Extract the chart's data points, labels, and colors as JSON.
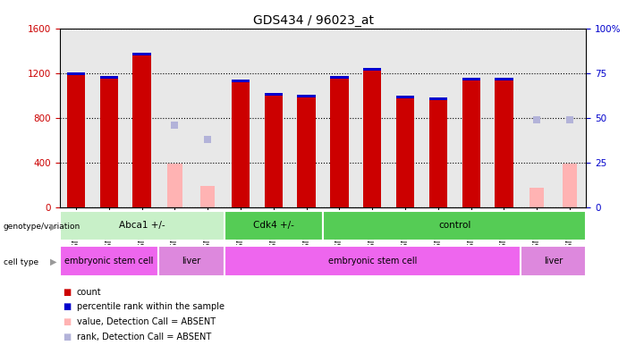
{
  "title": "GDS434 / 96023_at",
  "samples": [
    "GSM9269",
    "GSM9270",
    "GSM9271",
    "GSM9283",
    "GSM9284",
    "GSM9278",
    "GSM9279",
    "GSM9280",
    "GSM9272",
    "GSM9273",
    "GSM9274",
    "GSM9275",
    "GSM9276",
    "GSM9277",
    "GSM9281",
    "GSM9282"
  ],
  "counts": [
    1180,
    1150,
    1360,
    0,
    0,
    1120,
    1000,
    980,
    1150,
    1220,
    970,
    960,
    1130,
    1130,
    0,
    0
  ],
  "ranks": [
    70,
    68,
    71,
    0,
    0,
    69,
    64,
    63,
    70,
    75,
    62,
    63,
    68,
    68,
    0,
    0
  ],
  "counts_absent": [
    0,
    0,
    0,
    390,
    190,
    0,
    0,
    0,
    0,
    0,
    0,
    0,
    0,
    0,
    170,
    390
  ],
  "ranks_absent": [
    0,
    0,
    0,
    46,
    38,
    0,
    0,
    0,
    0,
    0,
    0,
    0,
    0,
    0,
    49,
    49
  ],
  "ylim_left": [
    0,
    1600
  ],
  "ylim_right": [
    0,
    100
  ],
  "yticks_left": [
    0,
    400,
    800,
    1200,
    1600
  ],
  "yticks_right": [
    0,
    25,
    50,
    75,
    100
  ],
  "bar_color": "#cc0000",
  "rank_color": "#0000cc",
  "absent_bar_color": "#ffb3b3",
  "absent_rank_color": "#b3b3d9",
  "bar_width": 0.55,
  "rank_bar_height": 25,
  "genotype_groups": [
    {
      "label": "Abca1 +/-",
      "start": 0,
      "end": 5,
      "color": "#c8f0c8"
    },
    {
      "label": "Cdk4 +/-",
      "start": 5,
      "end": 8,
      "color": "#55cc55"
    },
    {
      "label": "control",
      "start": 8,
      "end": 16,
      "color": "#55cc55"
    }
  ],
  "cell_groups": [
    {
      "label": "embryonic stem cell",
      "start": 0,
      "end": 3,
      "color": "#ee66ee"
    },
    {
      "label": "liver",
      "start": 3,
      "end": 5,
      "color": "#dd88dd"
    },
    {
      "label": "embryonic stem cell",
      "start": 5,
      "end": 14,
      "color": "#ee66ee"
    },
    {
      "label": "liver",
      "start": 14,
      "end": 16,
      "color": "#dd88dd"
    }
  ],
  "legend_items": [
    {
      "label": "count",
      "color": "#cc0000"
    },
    {
      "label": "percentile rank within the sample",
      "color": "#0000cc"
    },
    {
      "label": "value, Detection Call = ABSENT",
      "color": "#ffb3b3"
    },
    {
      "label": "rank, Detection Call = ABSENT",
      "color": "#b3b3d9"
    }
  ],
  "plot_bgcolor": "#e8e8e8",
  "left_axis_color": "#cc0000",
  "right_axis_color": "#0000cc"
}
